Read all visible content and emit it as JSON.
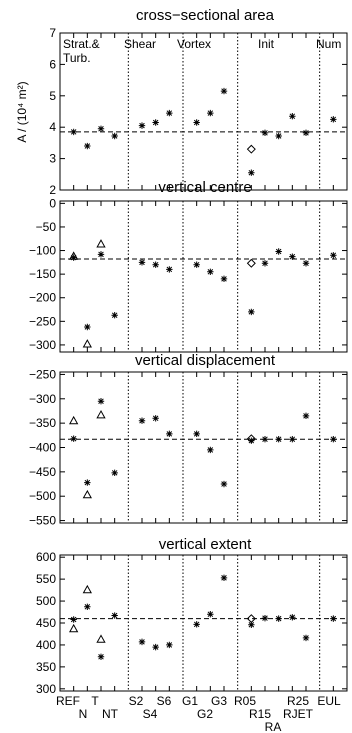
{
  "chart_data": [
    {
      "type": "scatter",
      "title": "cross−sectional area",
      "ylabel": "A / (10⁴ m²)",
      "ylim": [
        2,
        7
      ],
      "yticks": [
        "2",
        "3",
        "4",
        "5",
        "6",
        "7"
      ],
      "ref_line": 3.85,
      "group_labels": [
        "Strat.&",
        "Turb.",
        "Shear",
        "Vortex",
        "Init",
        "Num"
      ],
      "stars": [
        [
          1,
          3.85
        ],
        [
          2,
          3.4
        ],
        [
          3,
          3.95
        ],
        [
          4,
          3.72
        ],
        [
          6,
          4.05
        ],
        [
          7,
          4.15
        ],
        [
          8,
          4.45
        ],
        [
          10,
          4.15
        ],
        [
          11,
          4.45
        ],
        [
          12,
          5.15
        ],
        [
          14,
          2.55
        ],
        [
          15,
          3.82
        ],
        [
          16,
          3.72
        ],
        [
          17,
          4.35
        ],
        [
          18,
          3.82
        ],
        [
          20,
          4.25
        ]
      ],
      "triangles": [],
      "diamonds": [
        [
          14,
          3.3
        ]
      ]
    },
    {
      "type": "scatter",
      "title": "vertical centre",
      "ylim": [
        -315,
        5
      ],
      "yticks": [
        "0",
        "−50",
        "−100",
        "−150",
        "−200",
        "−250",
        "−300"
      ],
      "ref_line": -118,
      "stars": [
        [
          1,
          -115
        ],
        [
          2,
          -262
        ],
        [
          3,
          -108
        ],
        [
          4,
          -237
        ],
        [
          6,
          -125
        ],
        [
          7,
          -130
        ],
        [
          8,
          -140
        ],
        [
          10,
          -130
        ],
        [
          11,
          -145
        ],
        [
          12,
          -160
        ],
        [
          14,
          -230
        ],
        [
          15,
          -127
        ],
        [
          16,
          -102
        ],
        [
          17,
          -113
        ],
        [
          18,
          -127
        ],
        [
          20,
          -110
        ]
      ],
      "triangles": [
        [
          1,
          -112
        ],
        [
          2,
          -298
        ],
        [
          3,
          -86
        ]
      ],
      "diamonds": [
        [
          14,
          -127
        ]
      ]
    },
    {
      "type": "scatter",
      "title": "vertical displacement",
      "ylim": [
        -555,
        -245
      ],
      "yticks": [
        "−250",
        "−300",
        "−350",
        "−400",
        "−450",
        "−500",
        "−550"
      ],
      "ref_line": -383,
      "stars": [
        [
          1,
          -382
        ],
        [
          2,
          -472
        ],
        [
          3,
          -305
        ],
        [
          4,
          -452
        ],
        [
          6,
          -345
        ],
        [
          7,
          -340
        ],
        [
          8,
          -372
        ],
        [
          10,
          -372
        ],
        [
          11,
          -405
        ],
        [
          12,
          -475
        ],
        [
          14,
          -386
        ],
        [
          15,
          -383
        ],
        [
          16,
          -383
        ],
        [
          17,
          -383
        ],
        [
          18,
          -335
        ],
        [
          20,
          -383
        ]
      ],
      "triangles": [
        [
          1,
          -345
        ],
        [
          2,
          -497
        ],
        [
          3,
          -333
        ]
      ],
      "diamonds": [
        [
          14,
          -382
        ]
      ]
    },
    {
      "type": "scatter",
      "title": "vertical extent",
      "ylim": [
        295,
        605
      ],
      "yticks": [
        "600",
        "550",
        "500",
        "450",
        "400",
        "350",
        "300"
      ],
      "ref_line": 460,
      "stars": [
        [
          1,
          458
        ],
        [
          2,
          487
        ],
        [
          3,
          373
        ],
        [
          4,
          467
        ],
        [
          6,
          407
        ],
        [
          7,
          395
        ],
        [
          8,
          400
        ],
        [
          10,
          447
        ],
        [
          11,
          470
        ],
        [
          12,
          553
        ],
        [
          14,
          446
        ],
        [
          15,
          461
        ],
        [
          16,
          460
        ],
        [
          17,
          463
        ],
        [
          18,
          416
        ],
        [
          20,
          460
        ]
      ],
      "triangles": [
        [
          1,
          437
        ],
        [
          2,
          526
        ],
        [
          3,
          413
        ]
      ],
      "diamonds": [
        [
          14,
          460
        ]
      ]
    }
  ],
  "x_labels": {
    "top": [
      "REF",
      "T",
      "S2",
      "S6",
      "G1",
      "G3",
      "R05",
      "R25",
      "EUL"
    ],
    "bottom": [
      "N",
      "NT",
      "S4",
      "G2",
      "R15",
      "RJET"
    ],
    "extra": [
      "RA"
    ]
  }
}
